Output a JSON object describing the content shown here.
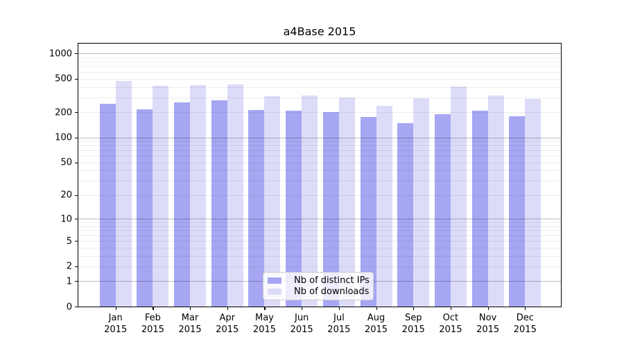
{
  "title": "a4Base 2015",
  "legend": {
    "items": [
      {
        "label": "Nb of distinct IPs",
        "color": "#a6a6f3"
      },
      {
        "label": "Nb of downloads",
        "color": "#dcdcf9"
      }
    ]
  },
  "chart_data": {
    "type": "bar",
    "title": "a4Base 2015",
    "xlabel": "",
    "ylabel": "",
    "yscale": "log10(v+1)",
    "ylim": [
      0,
      1380
    ],
    "legend_position": "lower center",
    "grid": {
      "major": [
        1,
        10,
        100,
        1000
      ],
      "minor": [
        2,
        3,
        4,
        5,
        6,
        7,
        8,
        9,
        20,
        30,
        40,
        50,
        60,
        70,
        80,
        90,
        200,
        300,
        400,
        500,
        600,
        700,
        800,
        900
      ]
    },
    "yticks": [
      1000,
      500,
      200,
      100,
      50,
      20,
      10,
      5,
      2,
      1,
      0
    ],
    "categories": [
      "Jan",
      "Feb",
      "Mar",
      "Apr",
      "May",
      "Jun",
      "Jul",
      "Aug",
      "Sep",
      "Oct",
      "Nov",
      "Dec"
    ],
    "year_label": "2015",
    "series": [
      {
        "name": "Nb of distinct IPs",
        "color": "#a6a6f3",
        "values": [
          251,
          215,
          261,
          278,
          213,
          207,
          201,
          175,
          148,
          190,
          207,
          180
        ]
      },
      {
        "name": "Nb of downloads",
        "color": "#dcdcf9",
        "values": [
          473,
          415,
          417,
          430,
          308,
          315,
          298,
          238,
          295,
          402,
          315,
          288
        ]
      }
    ]
  }
}
